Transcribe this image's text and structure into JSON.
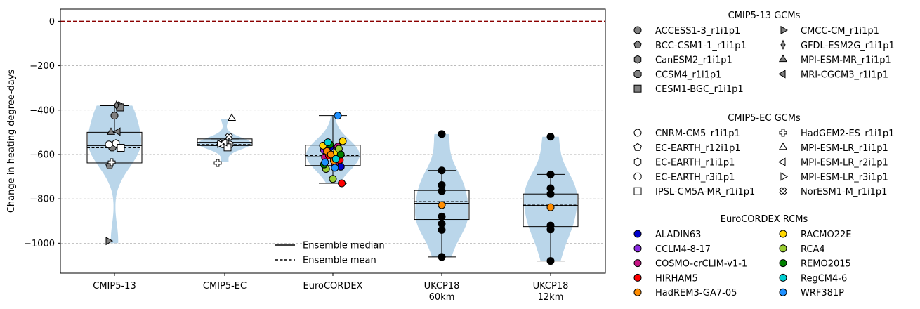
{
  "chart_data": {
    "type": "violin",
    "ylabel": "Change in heating degree-days",
    "ylim": [
      -1135,
      55
    ],
    "yticks": [
      0,
      -200,
      -400,
      -600,
      -800,
      -1000
    ],
    "ytick_labels": [
      "0",
      "−200",
      "−400",
      "−600",
      "−800",
      "−1000"
    ],
    "grid": "y-dashed",
    "reference_line": {
      "value": 0,
      "color": "#8b0000",
      "style": "dashed"
    },
    "violin_color": "#bad6ea",
    "categories": [
      {
        "label": "CMIP5-13",
        "label_line2": "",
        "median": -560,
        "mean": -570,
        "q1": -638,
        "q3": -500,
        "whisker_low": -638,
        "whisker_high": -380,
        "violin_min": -1000,
        "violin_max": -380
      },
      {
        "label": "CMIP5-EC",
        "label_line2": "",
        "median": -545,
        "mean": -555,
        "q1": -560,
        "q3": -530,
        "whisker_low": -560,
        "whisker_high": -530,
        "violin_min": -635,
        "violin_max": -440
      },
      {
        "label": "EuroCORDEX",
        "label_line2": "",
        "median": -610,
        "mean": -605,
        "q1": -650,
        "q3": -558,
        "whisker_low": -730,
        "whisker_high": -425,
        "violin_min": -730,
        "violin_max": -425
      },
      {
        "label": "UKCP18",
        "label_line2": "60km",
        "median": -820,
        "mean": -812,
        "q1": -893,
        "q3": -762,
        "whisker_low": -1062,
        "whisker_high": -672,
        "violin_min": -1062,
        "violin_max": -508
      },
      {
        "label": "UKCP18",
        "label_line2": "12km",
        "median": -830,
        "mean": -828,
        "q1": -925,
        "q3": -778,
        "whisker_low": -1080,
        "whisker_high": -690,
        "violin_min": -1080,
        "violin_max": -520
      }
    ],
    "points": [
      {
        "group": 0,
        "model": "ACCESS1-3_r1i1p1",
        "value": -425
      },
      {
        "group": 0,
        "model": "BCC-CSM1-1_r1i1p1",
        "value": -650
      },
      {
        "group": 0,
        "model": "CanESM2_r1i1p1",
        "value": -380
      },
      {
        "group": 0,
        "model": "CCSM4_r1i1p1",
        "value": -568
      },
      {
        "group": 0,
        "model": "CESM1-BGC_r1i1p1",
        "value": -388
      },
      {
        "group": 0,
        "model": "CMCC-CM_r1i1p1",
        "value": -990
      },
      {
        "group": 0,
        "model": "GFDL-ESM2G_r1i1p1",
        "value": -378
      },
      {
        "group": 0,
        "model": "MPI-ESM-MR_r1i1p1",
        "value": -500
      },
      {
        "group": 0,
        "model": "MRI-CGCM3_r1i1p1",
        "value": -497
      },
      {
        "group": 0,
        "model": "CNRM-CM5_r1i1p1",
        "value": -555
      },
      {
        "group": 0,
        "model": "EC-EARTH_r1i1p1",
        "value": -550
      },
      {
        "group": 0,
        "model": "IPSL-CM5A-MR_r1i1p1",
        "value": -570
      },
      {
        "group": 0,
        "model": "HadGEM2-ES_r1i1p1",
        "value": -635
      },
      {
        "group": 1,
        "model": "CNRM-CM5_r1i1p1",
        "value": -555
      },
      {
        "group": 1,
        "model": "EC-EARTH_r12i1p1",
        "value": -550
      },
      {
        "group": 1,
        "model": "EC-EARTH_r1i1p1",
        "value": -548
      },
      {
        "group": 1,
        "model": "EC-EARTH_r3i1p1",
        "value": -553
      },
      {
        "group": 1,
        "model": "IPSL-CM5A-MR_r1i1p1",
        "value": -568
      },
      {
        "group": 1,
        "model": "HadGEM2-ES_r1i1p1",
        "value": -638
      },
      {
        "group": 1,
        "model": "MPI-ESM-LR_r1i1p1",
        "value": -437
      },
      {
        "group": 1,
        "model": "MPI-ESM-LR_r2i1p1",
        "value": -545
      },
      {
        "group": 1,
        "model": "MPI-ESM-LR_r3i1p1",
        "value": -552
      },
      {
        "group": 1,
        "model": "NorESM1-M_r1i1p1",
        "value": -520
      },
      {
        "group": 2,
        "model": "ALADIN63",
        "value": -568
      },
      {
        "group": 2,
        "model": "ALADIN63",
        "value": -655
      },
      {
        "group": 2,
        "model": "CCLM4-8-17",
        "value": -580
      },
      {
        "group": 2,
        "model": "CCLM4-8-17",
        "value": -615
      },
      {
        "group": 2,
        "model": "CCLM4-8-17",
        "value": -560
      },
      {
        "group": 2,
        "model": "COSMO-crCLIM-v1-1",
        "value": -565
      },
      {
        "group": 2,
        "model": "COSMO-crCLIM-v1-1",
        "value": -612
      },
      {
        "group": 2,
        "model": "COSMO-crCLIM-v1-1",
        "value": -640
      },
      {
        "group": 2,
        "model": "HIRHAM5",
        "value": -730
      },
      {
        "group": 2,
        "model": "HIRHAM5",
        "value": -605
      },
      {
        "group": 2,
        "model": "HIRHAM5",
        "value": -625
      },
      {
        "group": 2,
        "model": "HadREM3-GA7-05",
        "value": -585
      },
      {
        "group": 2,
        "model": "HadREM3-GA7-05",
        "value": -628
      },
      {
        "group": 2,
        "model": "HadREM3-GA7-05",
        "value": -600
      },
      {
        "group": 2,
        "model": "RACMO22E",
        "value": -590
      },
      {
        "group": 2,
        "model": "RACMO22E",
        "value": -560
      },
      {
        "group": 2,
        "model": "RACMO22E",
        "value": -540
      },
      {
        "group": 2,
        "model": "RCA4",
        "value": -710
      },
      {
        "group": 2,
        "model": "RCA4",
        "value": -665
      },
      {
        "group": 2,
        "model": "RCA4",
        "value": -575
      },
      {
        "group": 2,
        "model": "REMO2015",
        "value": -555
      },
      {
        "group": 2,
        "model": "REMO2015",
        "value": -600
      },
      {
        "group": 2,
        "model": "REMO2015",
        "value": -645
      },
      {
        "group": 2,
        "model": "RegCM4-6",
        "value": -620
      },
      {
        "group": 2,
        "model": "RegCM4-6",
        "value": -545
      },
      {
        "group": 2,
        "model": "WRF381P",
        "value": -425
      },
      {
        "group": 2,
        "model": "WRF381P",
        "value": -635
      },
      {
        "group": 2,
        "model": "WRF381P",
        "value": -660
      },
      {
        "group": 3,
        "model": "",
        "value": -508
      },
      {
        "group": 3,
        "model": "",
        "value": -672
      },
      {
        "group": 3,
        "model": "",
        "value": -738
      },
      {
        "group": 3,
        "model": "",
        "value": -765
      },
      {
        "group": 3,
        "model": "HadREM3-GA7-05",
        "value": -828
      },
      {
        "group": 3,
        "model": "",
        "value": -880
      },
      {
        "group": 3,
        "model": "",
        "value": -912
      },
      {
        "group": 3,
        "model": "",
        "value": -940
      },
      {
        "group": 3,
        "model": "",
        "value": -1062
      },
      {
        "group": 4,
        "model": "",
        "value": -520
      },
      {
        "group": 4,
        "model": "",
        "value": -690
      },
      {
        "group": 4,
        "model": "",
        "value": -752
      },
      {
        "group": 4,
        "model": "",
        "value": -778
      },
      {
        "group": 4,
        "model": "HadREM3-GA7-05",
        "value": -838
      },
      {
        "group": 4,
        "model": "",
        "value": -920
      },
      {
        "group": 4,
        "model": "",
        "value": -938
      },
      {
        "group": 4,
        "model": "",
        "value": -1080
      }
    ],
    "inner_legend": [
      {
        "label": "Ensemble median",
        "style": "solid"
      },
      {
        "label": "Ensemble mean",
        "style": "dashed"
      }
    ],
    "legend_groups": [
      {
        "title": "CMIP5-13 GCMs",
        "entries": [
          {
            "label": "ACCESS1-3_r1i1p1",
            "marker": "circle",
            "color": "#808080"
          },
          {
            "label": "BCC-CSM1-1_r1i1p1",
            "marker": "pentagon",
            "color": "#808080"
          },
          {
            "label": "CanESM2_r1i1p1",
            "marker": "hexagon",
            "color": "#808080"
          },
          {
            "label": "CCSM4_r1i1p1",
            "marker": "octagon",
            "color": "#808080"
          },
          {
            "label": "CESM1-BGC_r1i1p1",
            "marker": "square",
            "color": "#808080"
          },
          {
            "label": "CMCC-CM_r1i1p1",
            "marker": "triangle-right",
            "color": "#808080"
          },
          {
            "label": "GFDL-ESM2G_r1i1p1",
            "marker": "thin-diamond",
            "color": "#808080"
          },
          {
            "label": "MPI-ESM-MR_r1i1p1",
            "marker": "triangle-up",
            "color": "#808080"
          },
          {
            "label": "MRI-CGCM3_r1i1p1",
            "marker": "triangle-left",
            "color": "#808080"
          }
        ]
      },
      {
        "title": "CMIP5-EC GCMs",
        "entries": [
          {
            "label": "CNRM-CM5_r1i1p1",
            "marker": "circle",
            "color": "#ffffff"
          },
          {
            "label": "EC-EARTH_r12i1p1",
            "marker": "pentagon",
            "color": "#ffffff"
          },
          {
            "label": "EC-EARTH_r1i1p1",
            "marker": "hexagon",
            "color": "#ffffff"
          },
          {
            "label": "EC-EARTH_r3i1p1",
            "marker": "octagon",
            "color": "#ffffff"
          },
          {
            "label": "IPSL-CM5A-MR_r1i1p1",
            "marker": "square",
            "color": "#ffffff"
          },
          {
            "label": "HadGEM2-ES_r1i1p1",
            "marker": "plus",
            "color": "#ffffff"
          },
          {
            "label": "MPI-ESM-LR_r1i1p1",
            "marker": "triangle-up",
            "color": "#ffffff"
          },
          {
            "label": "MPI-ESM-LR_r2i1p1",
            "marker": "triangle-left",
            "color": "#ffffff"
          },
          {
            "label": "MPI-ESM-LR_r3i1p1",
            "marker": "triangle-right",
            "color": "#ffffff"
          },
          {
            "label": "NorESM1-M_r1i1p1",
            "marker": "x",
            "color": "#ffffff"
          }
        ]
      },
      {
        "title": "EuroCORDEX RCMs",
        "entries": [
          {
            "label": "ALADIN63",
            "marker": "circle",
            "color": "#0000cd"
          },
          {
            "label": "CCLM4-8-17",
            "marker": "circle",
            "color": "#8a2be2"
          },
          {
            "label": "COSMO-crCLIM-v1-1",
            "marker": "circle",
            "color": "#c71585"
          },
          {
            "label": "HIRHAM5",
            "marker": "circle",
            "color": "#ff0000"
          },
          {
            "label": "HadREM3-GA7-05",
            "marker": "circle",
            "color": "#ff8c00"
          },
          {
            "label": "RACMO22E",
            "marker": "circle",
            "color": "#ffd700"
          },
          {
            "label": "RCA4",
            "marker": "circle",
            "color": "#9acd32"
          },
          {
            "label": "REMO2015",
            "marker": "circle",
            "color": "#008000"
          },
          {
            "label": "RegCM4-6",
            "marker": "circle",
            "color": "#00ced1"
          },
          {
            "label": "WRF381P",
            "marker": "circle",
            "color": "#1e90ff"
          }
        ]
      }
    ]
  }
}
